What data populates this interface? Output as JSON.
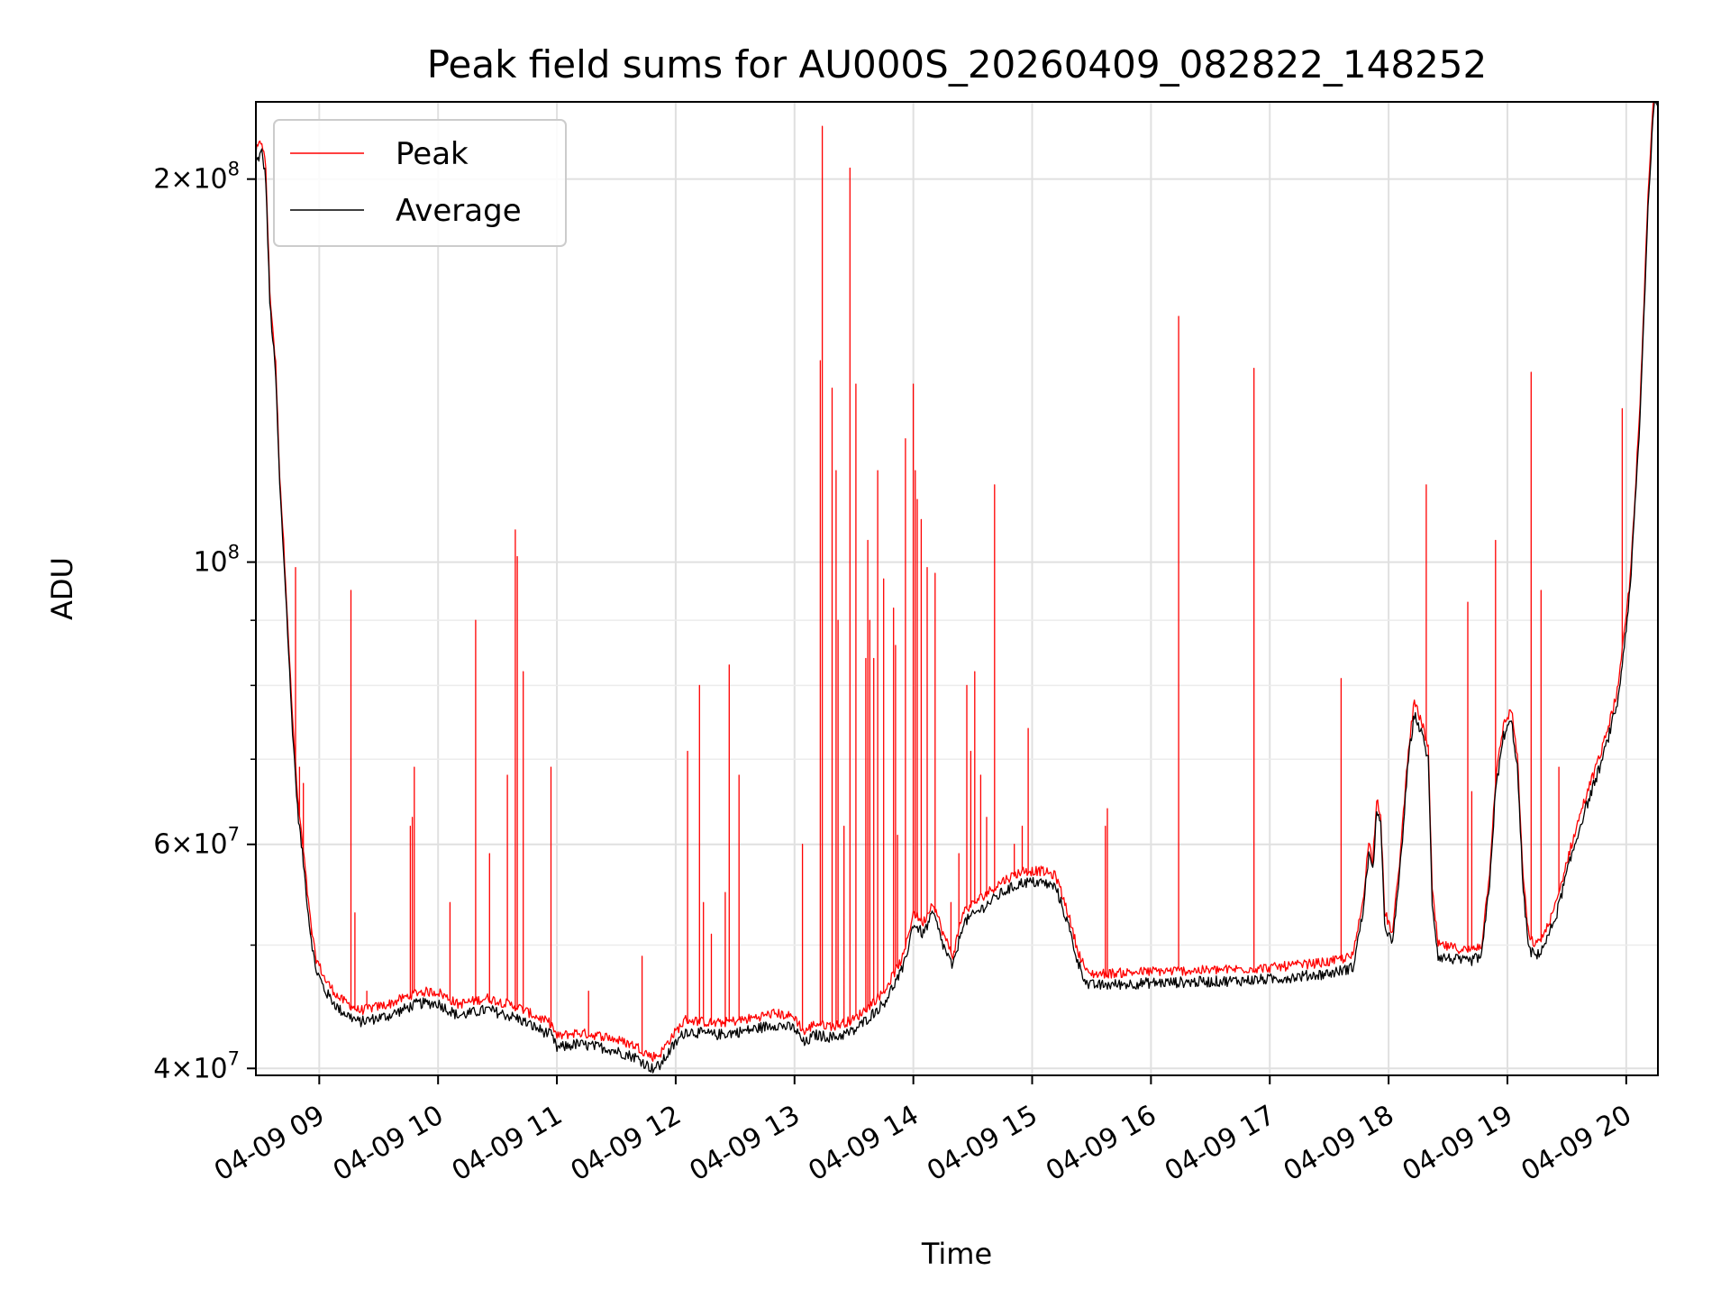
{
  "chart_data": {
    "type": "line",
    "title": "Peak field sums for AU000S_20260409_082822_148252",
    "xlabel": "Time",
    "ylabel": "ADU",
    "yscale": "log",
    "xlim": [
      "2026-04-09 08:28",
      "2026-04-09 20:16"
    ],
    "ylim": [
      39500000,
      230000000
    ],
    "grid": true,
    "legend": "top-left",
    "x_ticks": [
      "04-09 09",
      "04-09 10",
      "04-09 11",
      "04-09 12",
      "04-09 13",
      "04-09 14",
      "04-09 15",
      "04-09 16",
      "04-09 17",
      "04-09 18",
      "04-09 19",
      "04-09 20"
    ],
    "y_ticks_major": [
      {
        "value": 40000000,
        "mantissa": "4",
        "exp": "7"
      },
      {
        "value": 60000000,
        "mantissa": "6",
        "exp": "7"
      },
      {
        "value": 100000000,
        "mantissa": "",
        "exp": "8"
      },
      {
        "value": 200000000,
        "mantissa": "2",
        "exp": "8"
      }
    ],
    "y_ticks_minor": [
      50000000,
      70000000,
      80000000,
      90000000
    ],
    "series": [
      {
        "name": "Peak",
        "color": "#ff0000",
        "baseline": "average",
        "spikes": [
          [
            "08:48",
            99000000
          ],
          [
            "08:50",
            69000000
          ],
          [
            "08:52",
            67000000
          ],
          [
            "08:56",
            51000000
          ],
          [
            "09:16",
            95000000
          ],
          [
            "09:18",
            53000000
          ],
          [
            "09:24",
            46000000
          ],
          [
            "09:46",
            62000000
          ],
          [
            "09:47",
            63000000
          ],
          [
            "09:48",
            69000000
          ],
          [
            "10:06",
            54000000
          ],
          [
            "10:19",
            90000000
          ],
          [
            "10:26",
            59000000
          ],
          [
            "10:35",
            68000000
          ],
          [
            "10:39",
            106000000
          ],
          [
            "10:40",
            101000000
          ],
          [
            "10:43",
            82000000
          ],
          [
            "10:57",
            69000000
          ],
          [
            "11:16",
            46000000
          ],
          [
            "11:43",
            49000000
          ],
          [
            "12:06",
            71000000
          ],
          [
            "12:12",
            80000000
          ],
          [
            "12:14",
            54000000
          ],
          [
            "12:18",
            51000000
          ],
          [
            "12:25",
            55000000
          ],
          [
            "12:27",
            83000000
          ],
          [
            "12:32",
            68000000
          ],
          [
            "13:04",
            60000000
          ],
          [
            "13:13",
            144000000
          ],
          [
            "13:14",
            220000000
          ],
          [
            "13:19",
            137000000
          ],
          [
            "13:21",
            118000000
          ],
          [
            "13:22",
            90000000
          ],
          [
            "13:25",
            62000000
          ],
          [
            "13:28",
            204000000
          ],
          [
            "13:31",
            138000000
          ],
          [
            "13:36",
            84000000
          ],
          [
            "13:37",
            104000000
          ],
          [
            "13:38",
            90000000
          ],
          [
            "13:40",
            84000000
          ],
          [
            "13:42",
            118000000
          ],
          [
            "13:45",
            97000000
          ],
          [
            "13:50",
            92000000
          ],
          [
            "13:51",
            86000000
          ],
          [
            "13:52",
            61000000
          ],
          [
            "13:56",
            125000000
          ],
          [
            "14:00",
            138000000
          ],
          [
            "14:01",
            118000000
          ],
          [
            "14:02",
            112000000
          ],
          [
            "14:04",
            108000000
          ],
          [
            "14:07",
            99000000
          ],
          [
            "14:11",
            98000000
          ],
          [
            "14:19",
            54000000
          ],
          [
            "14:23",
            59000000
          ],
          [
            "14:27",
            80000000
          ],
          [
            "14:29",
            71000000
          ],
          [
            "14:31",
            82000000
          ],
          [
            "14:34",
            68000000
          ],
          [
            "14:37",
            63000000
          ],
          [
            "14:41",
            115000000
          ],
          [
            "14:51",
            60000000
          ],
          [
            "14:55",
            62000000
          ],
          [
            "14:58",
            74000000
          ],
          [
            "15:37",
            62000000
          ],
          [
            "15:38",
            64000000
          ],
          [
            "16:14",
            156000000
          ],
          [
            "16:52",
            142000000
          ],
          [
            "17:36",
            81000000
          ],
          [
            "18:19",
            115000000
          ],
          [
            "18:40",
            93000000
          ],
          [
            "18:42",
            66000000
          ],
          [
            "18:54",
            104000000
          ],
          [
            "19:12",
            141000000
          ],
          [
            "19:17",
            95000000
          ],
          [
            "19:26",
            69000000
          ],
          [
            "19:58",
            132000000
          ]
        ]
      },
      {
        "name": "Average",
        "color": "#000000",
        "points": [
          [
            "08:28",
            206000000
          ],
          [
            "08:31",
            210000000
          ],
          [
            "08:33",
            200000000
          ],
          [
            "08:35",
            160000000
          ],
          [
            "08:38",
            140000000
          ],
          [
            "08:40",
            115000000
          ],
          [
            "08:43",
            95000000
          ],
          [
            "08:46",
            76000000
          ],
          [
            "08:49",
            64000000
          ],
          [
            "08:52",
            58000000
          ],
          [
            "08:55",
            52000000
          ],
          [
            "08:58",
            48000000
          ],
          [
            "09:03",
            46000000
          ],
          [
            "09:10",
            44500000
          ],
          [
            "09:20",
            43500000
          ],
          [
            "09:35",
            44000000
          ],
          [
            "09:50",
            45000000
          ],
          [
            "10:00",
            45000000
          ],
          [
            "10:10",
            44000000
          ],
          [
            "10:25",
            44500000
          ],
          [
            "10:40",
            43800000
          ],
          [
            "10:50",
            43000000
          ],
          [
            "10:57",
            42500000
          ],
          [
            "11:00",
            41500000
          ],
          [
            "11:10",
            41800000
          ],
          [
            "11:25",
            41500000
          ],
          [
            "11:40",
            40800000
          ],
          [
            "11:48",
            40000000
          ],
          [
            "11:52",
            40200000
          ],
          [
            "11:58",
            41500000
          ],
          [
            "12:05",
            42800000
          ],
          [
            "12:20",
            42500000
          ],
          [
            "12:35",
            42800000
          ],
          [
            "12:50",
            43300000
          ],
          [
            "13:00",
            43000000
          ],
          [
            "13:05",
            41800000
          ],
          [
            "13:10",
            42500000
          ],
          [
            "13:20",
            42300000
          ],
          [
            "13:30",
            42800000
          ],
          [
            "13:35",
            43500000
          ],
          [
            "13:45",
            45000000
          ],
          [
            "13:55",
            48000000
          ],
          [
            "14:00",
            52000000
          ],
          [
            "14:05",
            51000000
          ],
          [
            "14:10",
            53000000
          ],
          [
            "14:15",
            50000000
          ],
          [
            "14:20",
            48000000
          ],
          [
            "14:25",
            52000000
          ],
          [
            "14:35",
            53500000
          ],
          [
            "14:45",
            55000000
          ],
          [
            "14:55",
            56000000
          ],
          [
            "15:05",
            56000000
          ],
          [
            "15:12",
            55500000
          ],
          [
            "15:18",
            52000000
          ],
          [
            "15:23",
            48500000
          ],
          [
            "15:28",
            46500000
          ],
          [
            "15:35",
            46500000
          ],
          [
            "16:00",
            46700000
          ],
          [
            "16:30",
            46800000
          ],
          [
            "17:00",
            47000000
          ],
          [
            "17:30",
            47500000
          ],
          [
            "17:42",
            48000000
          ],
          [
            "17:47",
            53000000
          ],
          [
            "17:50",
            59000000
          ],
          [
            "17:52",
            57000000
          ],
          [
            "17:54",
            64000000
          ],
          [
            "17:56",
            62000000
          ],
          [
            "17:58",
            52000000
          ],
          [
            "18:02",
            50000000
          ],
          [
            "18:06",
            58000000
          ],
          [
            "18:10",
            70000000
          ],
          [
            "18:13",
            76000000
          ],
          [
            "18:17",
            73000000
          ],
          [
            "18:20",
            70000000
          ],
          [
            "18:22",
            54000000
          ],
          [
            "18:25",
            49000000
          ],
          [
            "18:40",
            48500000
          ],
          [
            "18:47",
            49000000
          ],
          [
            "18:51",
            56000000
          ],
          [
            "18:54",
            66000000
          ],
          [
            "18:58",
            73000000
          ],
          [
            "19:02",
            75000000
          ],
          [
            "19:05",
            69000000
          ],
          [
            "19:08",
            55000000
          ],
          [
            "19:11",
            49500000
          ],
          [
            "19:15",
            49000000
          ],
          [
            "19:20",
            50500000
          ],
          [
            "19:25",
            53000000
          ],
          [
            "19:30",
            57000000
          ],
          [
            "19:38",
            63000000
          ],
          [
            "19:48",
            70000000
          ],
          [
            "19:56",
            78000000
          ],
          [
            "20:02",
            95000000
          ],
          [
            "20:07",
            130000000
          ],
          [
            "20:11",
            190000000
          ],
          [
            "20:14",
            230000000
          ]
        ]
      }
    ]
  }
}
